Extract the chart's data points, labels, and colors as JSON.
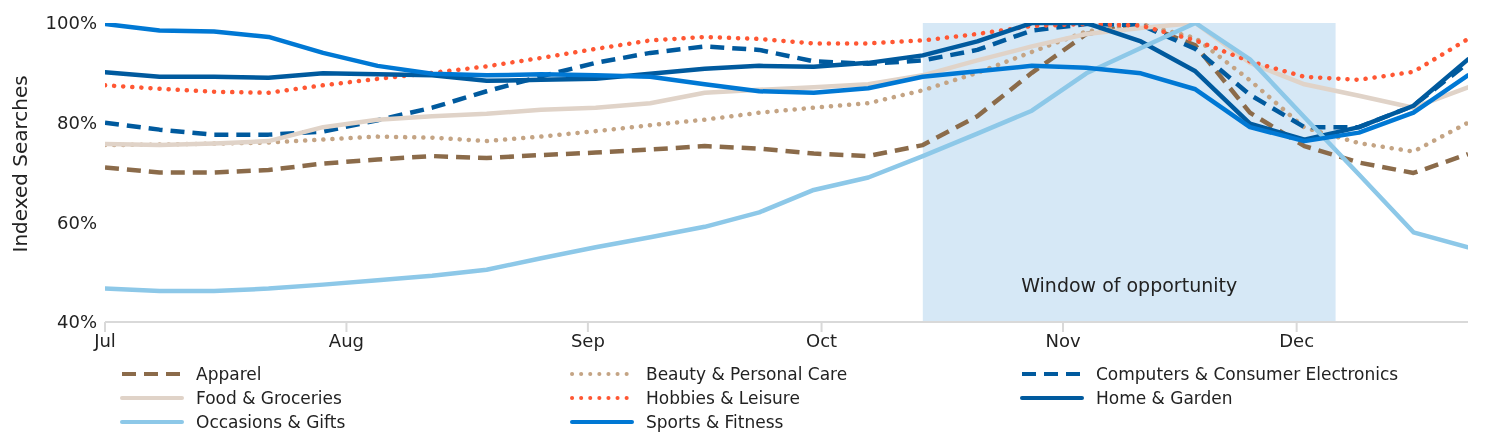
{
  "chart_data": {
    "type": "line",
    "ylabel": "Indexed Searches",
    "x": [
      "--07-01",
      "--07-08",
      "--07-15",
      "--07-22",
      "--07-29",
      "--08-05",
      "--08-12",
      "--08-19",
      "--08-26",
      "--09-02",
      "--09-09",
      "--09-16",
      "--09-23",
      "--09-30",
      "--10-07",
      "--10-14",
      "--10-21",
      "--10-28",
      "--11-04",
      "--11-11",
      "--11-18",
      "--11-25",
      "--12-02",
      "--12-09",
      "--12-16",
      "--12-23"
    ],
    "xlim": [
      "--07-01",
      "--12-23"
    ],
    "xticks": [
      {
        "value": "--07-01",
        "label": "Jul"
      },
      {
        "value": "--08-01",
        "label": "Aug"
      },
      {
        "value": "--09-01",
        "label": "Sep"
      },
      {
        "value": "--10-01",
        "label": "Oct"
      },
      {
        "value": "--11-01",
        "label": "Nov"
      },
      {
        "value": "--12-01",
        "label": "Dec"
      }
    ],
    "ylim": [
      40,
      100
    ],
    "yticks": [
      {
        "value": 40,
        "label": "40%"
      },
      {
        "value": 60,
        "label": "60%"
      },
      {
        "value": 80,
        "label": "80%"
      },
      {
        "value": 100,
        "label": "100%"
      }
    ],
    "grid": false,
    "legend": "bottom",
    "marker": "none",
    "bands": [
      {
        "axis": "x",
        "from": "--10-14",
        "to": "--12-06",
        "label": "Window of opportunity",
        "color": "#d6e8f6"
      }
    ],
    "series": [
      {
        "name": "Apparel",
        "color": "#8b6b4a",
        "line_style": "dashed",
        "values": [
          71,
          70,
          70,
          70.5,
          71.8,
          72.6,
          73.3,
          72.9,
          73.5,
          74,
          74.6,
          75.3,
          74.8,
          73.8,
          73.3,
          75.5,
          81.3,
          90,
          97.8,
          99.8,
          95.5,
          82,
          75.3,
          72,
          69.9,
          73.7
        ]
      },
      {
        "name": "Beauty & Personal Care",
        "color": "#c4a484",
        "line_style": "dotted",
        "values": [
          75.5,
          75.6,
          75.8,
          76,
          76.6,
          77.2,
          77,
          76.3,
          77.2,
          78.3,
          79.5,
          80.6,
          82,
          83,
          83.9,
          86.5,
          90,
          94.2,
          98.3,
          99.8,
          97,
          88.5,
          79,
          75.9,
          74.2,
          80
        ]
      },
      {
        "name": "Computers & Consumer Electronics",
        "color": "#005a9e",
        "line_style": "dashed",
        "values": [
          80,
          78.6,
          77.6,
          77.6,
          78.2,
          80.5,
          83,
          86.3,
          89.3,
          92,
          94,
          95.3,
          94.6,
          92.3,
          91.8,
          92.5,
          94.6,
          98.5,
          99.8,
          99.6,
          94.8,
          85.6,
          79.1,
          79.1,
          83.4,
          92
        ]
      },
      {
        "name": "Food & Groceries",
        "color": "#e0d3c8",
        "line_style": "solid",
        "values": [
          75.7,
          75.5,
          75.8,
          76.3,
          79.1,
          80.6,
          81.3,
          81.8,
          82.6,
          83,
          83.9,
          86,
          86.6,
          87.1,
          87.7,
          89.5,
          92.5,
          95.3,
          97.8,
          99,
          100,
          92,
          87.7,
          85.4,
          83,
          87.1
        ]
      },
      {
        "name": "Hobbies & Leisure",
        "color": "#ff5733",
        "line_style": "dotted",
        "values": [
          87.5,
          86.8,
          86.2,
          86,
          87.5,
          88.8,
          90,
          91.3,
          93,
          94.8,
          96.5,
          97.2,
          96.8,
          95.9,
          95.9,
          96.5,
          97.8,
          99.4,
          99.8,
          99.5,
          96.5,
          92.3,
          89.2,
          88.6,
          90.2,
          96.8
        ]
      },
      {
        "name": "Home & Garden",
        "color": "#005a9e",
        "line_style": "solid",
        "values": [
          90.1,
          89.2,
          89.2,
          89,
          89.9,
          89.7,
          89.5,
          88.4,
          88.6,
          88.8,
          89.8,
          90.8,
          91.4,
          91.2,
          92,
          93.5,
          96.3,
          100,
          100,
          96.3,
          90.3,
          79.8,
          76.6,
          79.1,
          83.4,
          92.7
        ]
      },
      {
        "name": "Occasions & Gifts",
        "color": "#8dc8e8",
        "line_style": "solid",
        "values": [
          46.7,
          46.2,
          46.2,
          46.7,
          47.5,
          48.4,
          49.3,
          50.5,
          52.8,
          55,
          57,
          59.1,
          62,
          66.5,
          69,
          73.3,
          77.8,
          82.4,
          89.9,
          95,
          100,
          92.7,
          81.1,
          69.6,
          58,
          55
        ]
      },
      {
        "name": "Sports & Fitness",
        "color": "#0078d4",
        "line_style": "solid",
        "values": [
          99.8,
          98.5,
          98.3,
          97.2,
          94,
          91.4,
          89.8,
          89.5,
          89.7,
          89.5,
          89.2,
          87.7,
          86.3,
          86,
          86.9,
          89.2,
          90.3,
          91.4,
          91,
          89.9,
          86.7,
          79.1,
          76.3,
          78,
          82,
          89.5
        ]
      }
    ]
  }
}
